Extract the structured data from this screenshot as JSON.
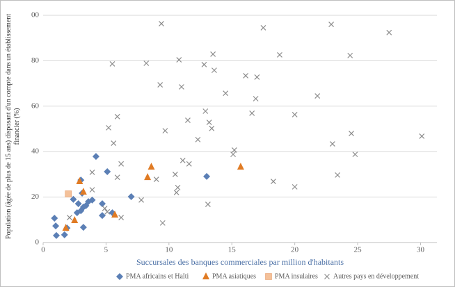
{
  "chart_data": {
    "type": "scatter",
    "x_label": "Succursales des banques commerciales par million d'habitants",
    "y_label": "Population (âgée de plus de 15 ans) disposant d'un compte dans un établissement financier (%)",
    "xlim": [
      0,
      31.3
    ],
    "ylim": [
      0,
      100
    ],
    "xticks": [
      0,
      5,
      10,
      15,
      20,
      25,
      30
    ],
    "yticks": [
      0,
      20,
      40,
      60,
      80,
      {
        "value": 100,
        "label": "00"
      }
    ],
    "grid": true,
    "series": [
      {
        "name": "PMA africains et Haïti",
        "color": "#5b7fb5",
        "marker": "diamond",
        "x": [
          0.9,
          1.0,
          1.05,
          1.7,
          1.9,
          2.4,
          2.7,
          2.8,
          3.0,
          3.1,
          3.0,
          3.2,
          3.2,
          3.4,
          3.6,
          3.9,
          4.2,
          4.7,
          4.7,
          5.1,
          5.5,
          7.0,
          13.0
        ],
        "values": [
          10.7,
          7.3,
          3.1,
          3.4,
          6.4,
          19,
          13.1,
          17.1,
          27.5,
          21.7,
          14,
          15.6,
          6.7,
          16.2,
          18,
          18.7,
          37.9,
          17.1,
          11.9,
          31.2,
          13.1,
          20.2,
          29.1
        ]
      },
      {
        "name": "PMA asiatiques",
        "color": "#e07b24",
        "marker": "triangle",
        "x": [
          1.8,
          2.5,
          2.9,
          3.2,
          5.7,
          8.3,
          8.6,
          15.7
        ],
        "values": [
          6.4,
          9.8,
          26.9,
          22.3,
          12.2,
          28.7,
          33.3,
          33.3
        ]
      },
      {
        "name": "PMA insulaires",
        "color": "#f4c19a",
        "marker": "square",
        "x": [
          2.0
        ],
        "values": [
          21.4
        ]
      },
      {
        "name": "Autres pays en développement",
        "color": "#8c8c8c",
        "marker": "cross",
        "x": [
          5.5,
          9.4,
          8.2,
          13.5,
          12.8,
          10.8,
          9.3,
          11.0,
          13.6,
          16.1,
          17.0,
          17.5,
          18.8,
          22.9,
          24.4,
          27.5,
          14.5,
          16.9,
          21.8,
          12.9,
          16.6,
          20.0,
          11.5,
          13.2,
          13.4,
          9.7,
          5.2,
          5.9,
          5.6,
          12.3,
          23.0,
          24.5,
          30.1,
          15.2,
          15.1,
          24.8,
          6.2,
          11.1,
          11.6,
          3.9,
          5.9,
          9.0,
          10.5,
          10.6,
          10.7,
          18.3,
          20.0,
          23.4,
          3.9,
          7.8,
          13.1,
          4.9,
          5.1,
          6.2,
          9.5,
          2.1
        ],
        "values": [
          78.6,
          96.3,
          78.9,
          82.9,
          78.3,
          80.4,
          69.4,
          68.5,
          75.8,
          73.4,
          72.8,
          94.5,
          82.6,
          96.0,
          82.3,
          92.4,
          65.7,
          63.3,
          64.5,
          57.8,
          56.9,
          56.3,
          53.8,
          52.9,
          50.2,
          49.2,
          50.5,
          55.4,
          43.7,
          45.3,
          43.4,
          48.0,
          46.8,
          40.7,
          38.8,
          38.8,
          34.6,
          36.1,
          34.6,
          30.9,
          28.7,
          27.8,
          30.0,
          22.0,
          24.2,
          26.9,
          24.5,
          29.7,
          23.2,
          18.7,
          16.8,
          15.0,
          13.5,
          11.0,
          8.6,
          11.0
        ]
      }
    ]
  }
}
